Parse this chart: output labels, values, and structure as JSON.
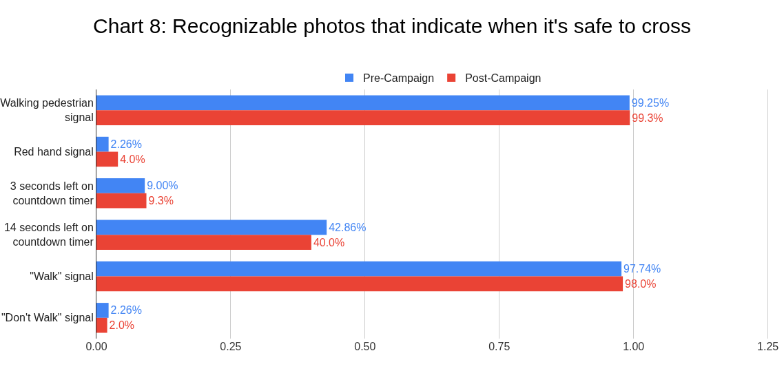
{
  "chart_data": {
    "type": "bar",
    "orientation": "horizontal",
    "title": "Chart 8: Recognizable photos that indicate when it's safe to cross",
    "categories": [
      "Walking pedestrian signal",
      "Red hand signal",
      "3 seconds left on countdown timer",
      "14 seconds left on countdown timer",
      "\"Walk\" signal",
      "\"Don't Walk\" signal"
    ],
    "series": [
      {
        "name": "Pre-Campaign",
        "color": "#4285f4",
        "values": [
          0.9925,
          0.0226,
          0.09,
          0.4286,
          0.9774,
          0.0226
        ],
        "value_labels": [
          "99.25%",
          "2.26%",
          "9.00%",
          "42.86%",
          "97.74%",
          "2.26%"
        ]
      },
      {
        "name": "Post-Campaign",
        "color": "#ea4335",
        "values": [
          0.993,
          0.04,
          0.093,
          0.4,
          0.98,
          0.02
        ],
        "value_labels": [
          "99.3%",
          "4.0%",
          "9.3%",
          "40.0%",
          "98.0%",
          "2.0%"
        ]
      }
    ],
    "xlim": [
      0,
      1.28
    ],
    "xticks": [
      {
        "value": 0,
        "label": "0.00"
      },
      {
        "value": 0.25,
        "label": "0.25"
      },
      {
        "value": 0.5,
        "label": "0.50"
      },
      {
        "value": 0.75,
        "label": "0.75"
      },
      {
        "value": 1,
        "label": "1.00"
      },
      {
        "value": 1.25,
        "label": "1.25"
      }
    ],
    "grid": "x",
    "legend": "top"
  }
}
